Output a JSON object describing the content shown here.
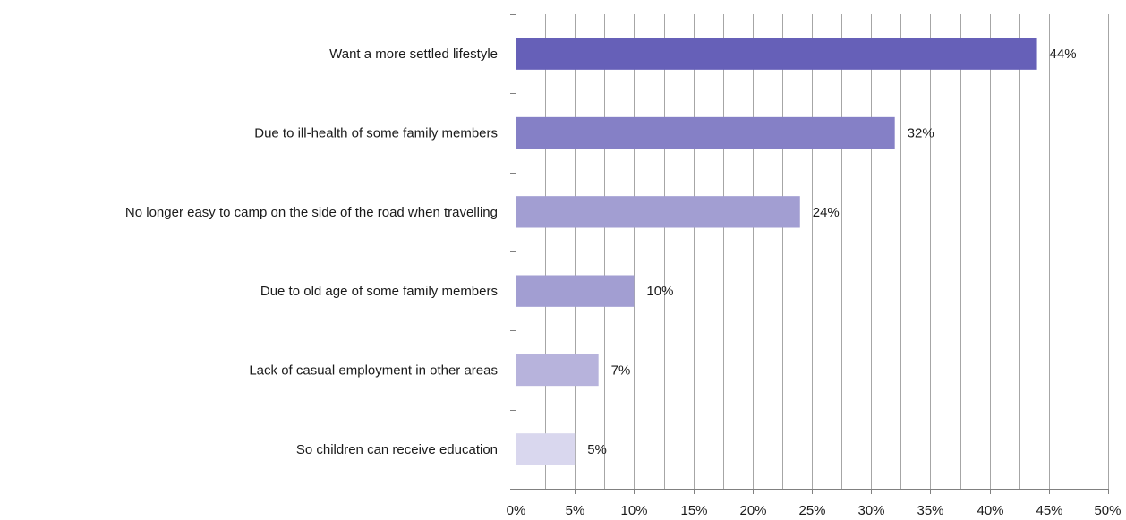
{
  "chart_data": {
    "type": "bar",
    "orientation": "horizontal",
    "categories": [
      "Want a more settled lifestyle",
      "Due to ill-health of some family members",
      "No longer easy to camp on the side of the road when travelling",
      "Due to old age of some family members",
      "Lack of casual employment in other areas",
      "So children can receive education"
    ],
    "values": [
      44,
      32,
      24,
      10,
      7,
      5
    ],
    "data_labels": [
      "44%",
      "32%",
      "24%",
      "10%",
      "7%",
      "5%"
    ],
    "bar_colors": [
      "#6660b8",
      "#8580c6",
      "#a29ed2",
      "#a29ed2",
      "#b7b3dc",
      "#d9d7ee"
    ],
    "title": "",
    "xlabel": "",
    "ylabel": "",
    "xlim": [
      0,
      50
    ],
    "x_ticks": [
      0,
      5,
      10,
      15,
      20,
      25,
      30,
      35,
      40,
      45,
      50
    ],
    "x_tick_labels": [
      "0%",
      "5%",
      "10%",
      "15%",
      "20%",
      "25%",
      "30%",
      "35%",
      "40%",
      "45%",
      "50%"
    ],
    "grid": true,
    "legend": "none"
  }
}
